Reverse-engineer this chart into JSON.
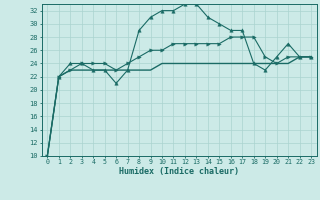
{
  "xlabel": "Humidex (Indice chaleur)",
  "bg_color": "#cceae7",
  "grid_color": "#aad4d0",
  "line_color": "#1a6b65",
  "xmin": -0.5,
  "xmax": 23.5,
  "ymin": 10,
  "ymax": 33,
  "yticks": [
    10,
    12,
    14,
    16,
    18,
    20,
    22,
    24,
    26,
    28,
    30,
    32
  ],
  "xtick_labels": [
    "0",
    "1",
    "2",
    "3",
    "4",
    "5",
    "6",
    "7",
    "8",
    "9",
    "10",
    "11",
    "12",
    "13",
    "14",
    "15",
    "16",
    "17",
    "18",
    "19",
    "20",
    "21",
    "22",
    "23"
  ],
  "series1_y": [
    10,
    22,
    24,
    24,
    23,
    23,
    21,
    23,
    29,
    31,
    32,
    32,
    33,
    33,
    31,
    30,
    29,
    29,
    24,
    23,
    25,
    27,
    25,
    25
  ],
  "series2_y": [
    10,
    22,
    23,
    24,
    24,
    24,
    23,
    24,
    25,
    26,
    26,
    27,
    27,
    27,
    27,
    27,
    28,
    28,
    28,
    25,
    24,
    25,
    25,
    25
  ],
  "series3_y": [
    10,
    22,
    23,
    23,
    23,
    23,
    23,
    23,
    23,
    23,
    24,
    24,
    24,
    24,
    24,
    24,
    24,
    24,
    24,
    24,
    24,
    24,
    25,
    25
  ]
}
